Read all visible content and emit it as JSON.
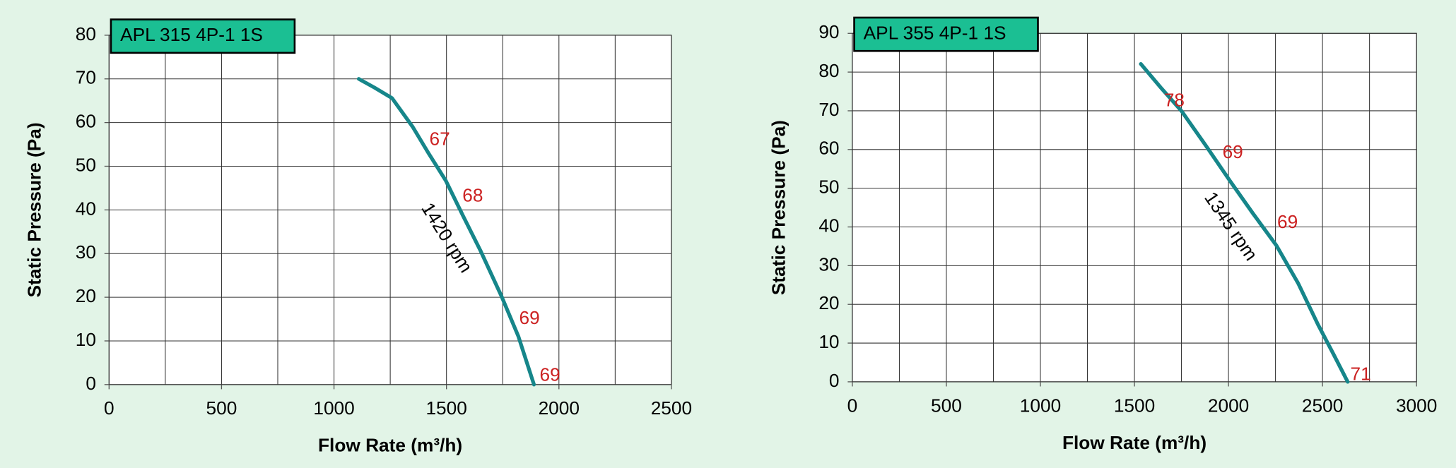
{
  "chart_data": [
    {
      "type": "line",
      "title": "APL 315 4P-1 1S",
      "x_label": "Flow Rate (m³/h)",
      "y_label": "Static Pressure (Pa)",
      "xlim": [
        0,
        2500
      ],
      "xticks": [
        0,
        500,
        1000,
        1500,
        2000,
        2500
      ],
      "ylim": [
        0,
        80
      ],
      "yticks": [
        0,
        10,
        20,
        30,
        40,
        50,
        60,
        70,
        80
      ],
      "grid": true,
      "series": [
        {
          "color": "#16868a",
          "x": [
            1110,
            1180,
            1258,
            1350,
            1420,
            1497,
            1575,
            1650,
            1745,
            1820,
            1889
          ],
          "values": [
            70,
            68,
            65.6,
            59,
            53,
            46.7,
            38.5,
            30.8,
            20.2,
            11,
            0
          ]
        }
      ],
      "annotations": [
        {
          "value": 67,
          "x": 1470,
          "y": 56
        },
        {
          "value": 68,
          "x": 1617,
          "y": 43
        },
        {
          "value": 69,
          "x": 1869,
          "y": 15
        },
        {
          "value": 69,
          "x": 1960,
          "y": 2
        }
      ],
      "curve_label": {
        "text": "1420 rpm",
        "x": 1497,
        "y": 33.5
      }
    },
    {
      "type": "line",
      "title": "APL 355 4P-1 1S",
      "x_label": "Flow Rate (m³/h)",
      "y_label": "Static Pressure (Pa)",
      "xlim": [
        0,
        3000
      ],
      "xticks": [
        0,
        500,
        1000,
        1500,
        2000,
        2500,
        3000
      ],
      "ylim": [
        0,
        90
      ],
      "yticks": [
        0,
        10,
        20,
        30,
        40,
        50,
        60,
        70,
        80,
        90
      ],
      "grid": true,
      "series": [
        {
          "color": "#16868a",
          "x": [
            1534,
            1640,
            1751,
            1880,
            2008,
            2130,
            2255,
            2370,
            2476,
            2560,
            2634
          ],
          "values": [
            82.1,
            76,
            69.9,
            61,
            51.9,
            43.5,
            35.2,
            25.5,
            14.8,
            7,
            0
          ]
        }
      ],
      "annotations": [
        {
          "value": 78,
          "x": 1712,
          "y": 72.4
        },
        {
          "value": 69,
          "x": 2023,
          "y": 59
        },
        {
          "value": 69,
          "x": 2314,
          "y": 41
        },
        {
          "value": 71,
          "x": 2703,
          "y": 1.7
        }
      ],
      "curve_label": {
        "text": "1345 rpm",
        "x": 2008,
        "y": 40
      }
    }
  ]
}
